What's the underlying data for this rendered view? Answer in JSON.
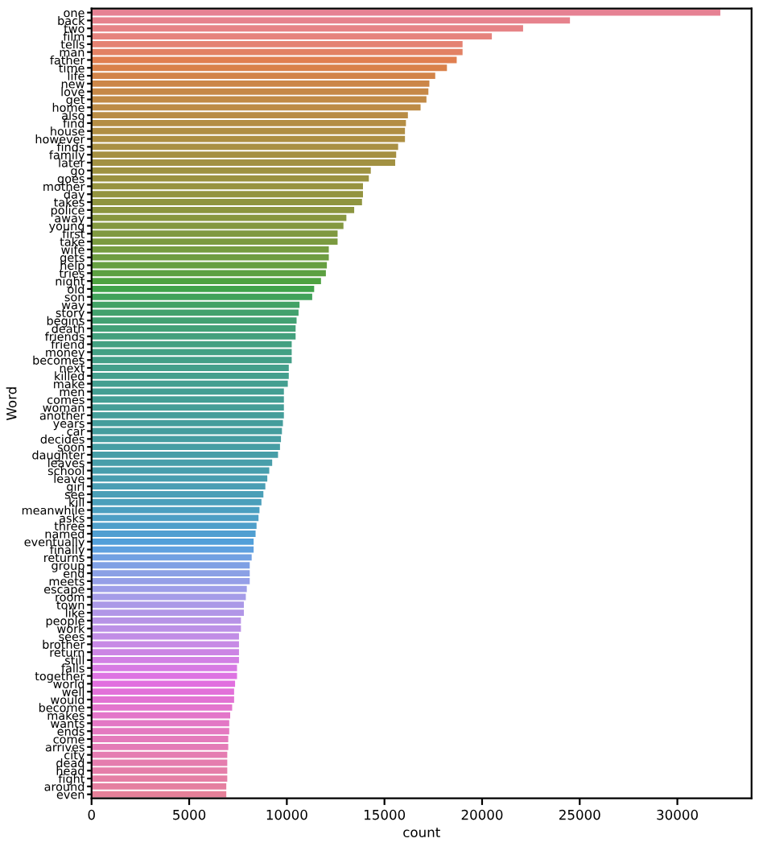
{
  "chart_data": {
    "type": "bar",
    "orientation": "horizontal",
    "xlabel": "count",
    "ylabel": "Word",
    "categories": [
      "one",
      "back",
      "two",
      "film",
      "tells",
      "man",
      "father",
      "time",
      "life",
      "new",
      "love",
      "get",
      "home",
      "also",
      "find",
      "house",
      "however",
      "finds",
      "family",
      "later",
      "go",
      "goes",
      "mother",
      "day",
      "takes",
      "police",
      "away",
      "young",
      "first",
      "take",
      "wife",
      "gets",
      "help",
      "tries",
      "night",
      "old",
      "son",
      "way",
      "story",
      "begins",
      "death",
      "friends",
      "friend",
      "money",
      "becomes",
      "next",
      "killed",
      "make",
      "men",
      "comes",
      "woman",
      "another",
      "years",
      "car",
      "decides",
      "soon",
      "daughter",
      "leaves",
      "school",
      "leave",
      "girl",
      "see",
      "kill",
      "meanwhile",
      "asks",
      "three",
      "named",
      "eventually",
      "finally",
      "returns",
      "group",
      "end",
      "meets",
      "escape",
      "room",
      "town",
      "like",
      "people",
      "work",
      "sees",
      "brother",
      "return",
      "still",
      "falls",
      "together",
      "world",
      "well",
      "would",
      "become",
      "makes",
      "wants",
      "ends",
      "come",
      "arrives",
      "city",
      "dead",
      "head",
      "fight",
      "around",
      "even"
    ],
    "values": [
      32200,
      24500,
      22100,
      20500,
      19000,
      19000,
      18700,
      18200,
      17600,
      17300,
      17250,
      17150,
      16850,
      16200,
      16100,
      16050,
      16050,
      15700,
      15600,
      15550,
      14300,
      14200,
      13900,
      13900,
      13850,
      13450,
      13050,
      12900,
      12600,
      12600,
      12150,
      12150,
      12050,
      12000,
      11750,
      11400,
      11300,
      10650,
      10600,
      10500,
      10450,
      10450,
      10250,
      10250,
      10250,
      10100,
      10100,
      10050,
      9850,
      9850,
      9850,
      9850,
      9800,
      9750,
      9700,
      9650,
      9550,
      9250,
      9100,
      9000,
      8900,
      8800,
      8700,
      8600,
      8550,
      8450,
      8400,
      8300,
      8300,
      8200,
      8100,
      8100,
      8100,
      7950,
      7900,
      7800,
      7800,
      7650,
      7650,
      7550,
      7550,
      7550,
      7550,
      7450,
      7450,
      7350,
      7300,
      7300,
      7200,
      7100,
      7050,
      7050,
      7000,
      7000,
      6950,
      6950,
      6950,
      6950,
      6900,
      6900
    ],
    "colors": [
      "#e68193",
      "#e6828d",
      "#e68386",
      "#e6837d",
      "#e48272",
      "#e28164",
      "#e07f50",
      "#d9814a",
      "#d28449",
      "#cc8648",
      "#c68847",
      "#c18a46",
      "#bd8b46",
      "#b98c45",
      "#b48d44",
      "#b08e44",
      "#ad8f43",
      "#a99043",
      "#a59042",
      "#a29142",
      "#9e9241",
      "#9a9240",
      "#979340",
      "#93933f",
      "#8f943f",
      "#8c9540",
      "#889740",
      "#849840",
      "#809940",
      "#7b9a40",
      "#759c40",
      "#6e9d41",
      "#669f41",
      "#5ca041",
      "#4ea241",
      "#41a34b",
      "#42a25a",
      "#42a265",
      "#42a16d",
      "#43a173",
      "#43a178",
      "#43a07d",
      "#43a081",
      "#43a084",
      "#449f88",
      "#449f8b",
      "#449f8d",
      "#449f90",
      "#449e93",
      "#449e95",
      "#459e97",
      "#459e9a",
      "#459d9c",
      "#459d9e",
      "#469da1",
      "#469ea4",
      "#479ea7",
      "#489eaa",
      "#489ead",
      "#499eb0",
      "#4a9eb4",
      "#4b9fb7",
      "#4b9fbb",
      "#4c9fc0",
      "#4e9fc5",
      "#4f9fca",
      "#509fd1",
      "#529fd9",
      "#5fa0df",
      "#71a0e2",
      "#7fa0e4",
      "#8ba0e5",
      "#959fe7",
      "#9e9ee8",
      "#a59ce8",
      "#ab99e7",
      "#b196e7",
      "#b793e6",
      "#bc90e6",
      "#c18de6",
      "#c789e5",
      "#cc85e4",
      "#d280e4",
      "#d77ae3",
      "#dd74e2",
      "#e16fdf",
      "#e271d9",
      "#e273d3",
      "#e375ce",
      "#e376c9",
      "#e377c5",
      "#e479c0",
      "#e47abb",
      "#e47bb7",
      "#e57cb2",
      "#e57dae",
      "#e57ea9",
      "#e57fa5",
      "#e57fa0",
      "#e68099"
    ],
    "xlim": [
      0,
      33800
    ],
    "xticks": [
      0,
      5000,
      10000,
      15000,
      20000,
      25000,
      30000
    ],
    "grid": false
  }
}
